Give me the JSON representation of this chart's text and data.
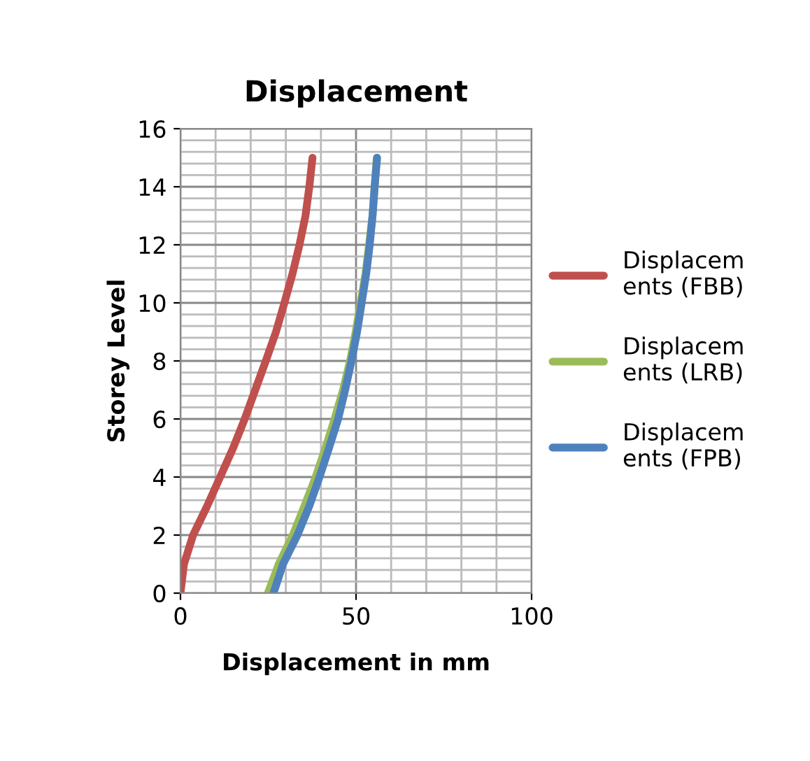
{
  "chart_data": {
    "type": "line",
    "title": "Displacement",
    "xlabel": "Displacement in mm",
    "ylabel": "Storey Level",
    "xlim": [
      0,
      100
    ],
    "xticks": [
      0,
      50,
      100
    ],
    "ylim": [
      0,
      16
    ],
    "yticks": [
      0,
      2,
      4,
      6,
      8,
      10,
      12,
      14,
      16
    ],
    "grid": true,
    "legend": "right",
    "marker": "none",
    "line_style": "solid",
    "series": [
      {
        "name": "Displacements (FBB)",
        "color": "#c0504d",
        "x": [
          0,
          1,
          3.6,
          7.6,
          11.3,
          15,
          18.3,
          21.3,
          24.3,
          27.2,
          29.6,
          31.9,
          33.9,
          35.6,
          36.7,
          37.6
        ],
        "values": [
          0,
          1,
          2,
          3,
          4,
          5,
          6,
          7,
          8,
          9,
          10,
          11,
          12,
          13,
          14,
          15
        ]
      },
      {
        "name": "Displacements (LRB)",
        "color": "#9bbb59",
        "x": [
          24.9,
          28,
          32,
          35.3,
          38.5,
          41.3,
          43.9,
          46.3,
          48.3,
          49.9,
          51.3,
          52.7,
          53.7,
          54.7,
          55.3,
          55.9
        ],
        "values": [
          0,
          1,
          2,
          3,
          4,
          5,
          6,
          7,
          8,
          9,
          10,
          11,
          12,
          13,
          14,
          15
        ]
      },
      {
        "name": "Displacements (FPB)",
        "color": "#4f81bd",
        "x": [
          26.5,
          29.2,
          33.3,
          36.7,
          39.6,
          42.3,
          44.9,
          46.9,
          48.7,
          50.3,
          51.6,
          52.9,
          53.9,
          54.7,
          55.3,
          56
        ],
        "values": [
          0,
          1,
          2,
          3,
          4,
          5,
          6,
          7,
          8,
          9,
          10,
          11,
          12,
          13,
          14,
          15
        ]
      }
    ]
  }
}
